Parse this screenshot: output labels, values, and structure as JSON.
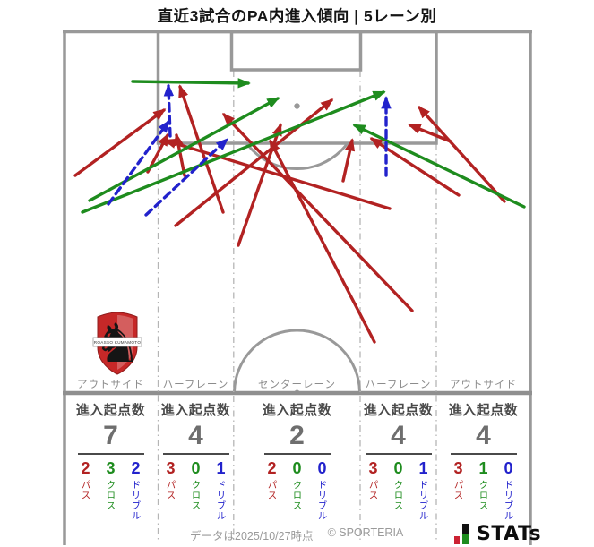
{
  "title": "直近3試合のPA内進入傾向 | 5レーン別",
  "stats_header": "進入起点数",
  "breakdown_labels": {
    "pass": "パス",
    "cross": "クロス",
    "dribble": "ドリブル"
  },
  "logo": {
    "banner": "ROASSO KUMAMOTO",
    "horse_glyph": "♞"
  },
  "footer": {
    "data_note": "データは2025/10/27時点",
    "copyright": "© SPORTERIA",
    "brand": "STATs"
  },
  "chart_data": {
    "type": "soccer-pitch-entry-arrows",
    "description": "PA(ペナルティエリア)内への進入経路を示す矢印図。赤=パス、緑=クロス、青破線=ドリブル。下段は5レーン別の進入起点数。",
    "colors": {
      "pass": "#b22222",
      "cross": "#1e8c1e",
      "dribble": "#2222cc",
      "pitch_line": "#999999",
      "lane_line": "#b5b5b5"
    },
    "lanes": [
      {
        "label": "アウトサイド",
        "total": 7,
        "pass": 2,
        "cross": 3,
        "dribble": 2
      },
      {
        "label": "ハーフレーン",
        "total": 4,
        "pass": 3,
        "cross": 0,
        "dribble": 1
      },
      {
        "label": "センターレーン",
        "total": 2,
        "pass": 2,
        "cross": 0,
        "dribble": 0
      },
      {
        "label": "ハーフレーン",
        "total": 4,
        "pass": 3,
        "cross": 0,
        "dribble": 1
      },
      {
        "label": "アウトサイド",
        "total": 4,
        "pass": 3,
        "cross": 1,
        "dribble": 0
      }
    ],
    "arrows": [
      {
        "type": "pass",
        "lane": 0,
        "from": [
          84,
          196
        ],
        "to": [
          183,
          123
        ]
      },
      {
        "type": "pass",
        "lane": 0,
        "from": [
          165,
          192
        ],
        "to": [
          187,
          151
        ]
      },
      {
        "type": "pass",
        "lane": 1,
        "from": [
          206,
          196
        ],
        "to": [
          197,
          151
        ]
      },
      {
        "type": "pass",
        "lane": 1,
        "from": [
          196,
          252
        ],
        "to": [
          370,
          112
        ]
      },
      {
        "type": "pass",
        "lane": 1,
        "from": [
          249,
          237
        ],
        "to": [
          201,
          97
        ]
      },
      {
        "type": "pass",
        "lane": 2,
        "from": [
          266,
          274
        ],
        "to": [
          313,
          140
        ]
      },
      {
        "type": "pass",
        "lane": 2,
        "from": [
          383,
          202
        ],
        "to": [
          393,
          157
        ]
      },
      {
        "type": "pass",
        "lane": 3,
        "from": [
          460,
          347
        ],
        "to": [
          250,
          128
        ]
      },
      {
        "type": "pass",
        "lane": 3,
        "from": [
          435,
          233
        ],
        "to": [
          185,
          157
        ]
      },
      {
        "type": "pass",
        "lane": 3,
        "from": [
          418,
          382
        ],
        "to": [
          302,
          158
        ]
      },
      {
        "type": "pass",
        "lane": 4,
        "from": [
          503,
          158
        ],
        "to": [
          458,
          140
        ]
      },
      {
        "type": "pass",
        "lane": 4,
        "from": [
          512,
          218
        ],
        "to": [
          415,
          155
        ]
      },
      {
        "type": "pass",
        "lane": 4,
        "from": [
          563,
          225
        ],
        "to": [
          468,
          120
        ]
      },
      {
        "type": "cross",
        "lane": 0,
        "from": [
          148,
          91
        ],
        "to": [
          277,
          93
        ]
      },
      {
        "type": "cross",
        "lane": 0,
        "from": [
          100,
          224
        ],
        "to": [
          310,
          110
        ]
      },
      {
        "type": "cross",
        "lane": 0,
        "from": [
          92,
          237
        ],
        "to": [
          428,
          103
        ]
      },
      {
        "type": "cross",
        "lane": 4,
        "from": [
          585,
          231
        ],
        "to": [
          396,
          140
        ]
      },
      {
        "type": "dribble",
        "lane": 0,
        "from": [
          121,
          228
        ],
        "to": [
          188,
          136
        ]
      },
      {
        "type": "dribble",
        "lane": 0,
        "from": [
          163,
          240
        ],
        "to": [
          253,
          156
        ]
      },
      {
        "type": "dribble",
        "lane": 1,
        "from": [
          190,
          152
        ],
        "to": [
          188,
          96
        ]
      },
      {
        "type": "dribble",
        "lane": 3,
        "from": [
          431,
          196
        ],
        "to": [
          431,
          110
        ]
      }
    ]
  }
}
